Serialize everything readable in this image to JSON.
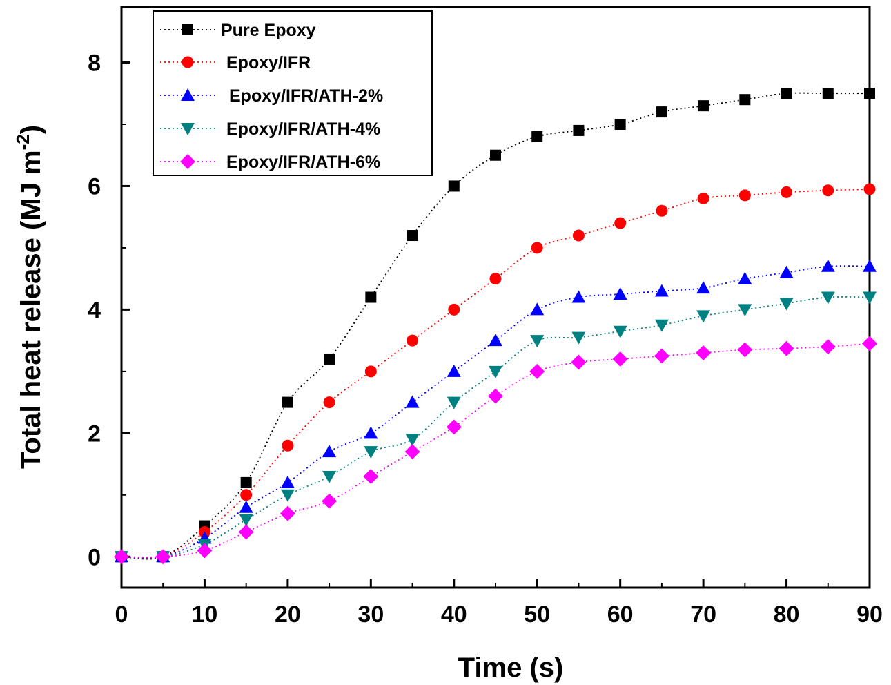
{
  "chart_data": {
    "type": "line",
    "xlabel": "Time (s)",
    "ylabel_main": "Total heat release (MJ m",
    "ylabel_sup": "-2",
    "ylabel_close": ")",
    "xlim": [
      0,
      90
    ],
    "ylim": [
      -0.5,
      8.9
    ],
    "xticks": [
      "0",
      "10",
      "20",
      "30",
      "40",
      "50",
      "60",
      "70",
      "80",
      "90"
    ],
    "yticks": [
      "0",
      "2",
      "4",
      "6",
      "8"
    ],
    "grid": false,
    "legend_position": "top-left",
    "x": [
      0,
      5,
      10,
      15,
      20,
      25,
      30,
      35,
      40,
      45,
      50,
      55,
      60,
      65,
      70,
      75,
      80,
      85,
      90
    ],
    "series": [
      {
        "name": "Pure Epoxy",
        "color": "#000000",
        "marker": "square",
        "values": [
          0,
          0,
          0.5,
          1.2,
          2.5,
          3.2,
          4.2,
          5.2,
          6.0,
          6.5,
          6.8,
          6.9,
          7.0,
          7.2,
          7.3,
          7.4,
          7.5,
          7.5,
          7.5
        ]
      },
      {
        "name": "Epoxy/IFR",
        "color": "#ff0000",
        "marker": "circle",
        "values": [
          0,
          0,
          0.4,
          1.0,
          1.8,
          2.5,
          3.0,
          3.5,
          4.0,
          4.5,
          5.0,
          5.2,
          5.4,
          5.6,
          5.8,
          5.85,
          5.9,
          5.93,
          5.95
        ]
      },
      {
        "name": " Epoxy/IFR/ATH-2%",
        "color": "#0000ff",
        "marker": "triangle-up",
        "values": [
          0,
          0,
          0.3,
          0.8,
          1.2,
          1.7,
          2.0,
          2.5,
          3.0,
          3.5,
          4.0,
          4.2,
          4.25,
          4.3,
          4.35,
          4.5,
          4.6,
          4.7,
          4.7
        ]
      },
      {
        "name": "Epoxy/IFR/ATH-4%",
        "color": "#008080",
        "marker": "triangle-down",
        "values": [
          0,
          0,
          0.2,
          0.6,
          1.0,
          1.3,
          1.7,
          1.9,
          2.5,
          3.0,
          3.5,
          3.55,
          3.65,
          3.75,
          3.9,
          4.0,
          4.1,
          4.2,
          4.2
        ]
      },
      {
        "name": "Epoxy/IFR/ATH-6%",
        "color": "#ff00ff",
        "marker": "diamond",
        "values": [
          0,
          0,
          0.1,
          0.4,
          0.7,
          0.9,
          1.3,
          1.7,
          2.1,
          2.6,
          3.0,
          3.15,
          3.2,
          3.25,
          3.3,
          3.35,
          3.37,
          3.4,
          3.45
        ]
      }
    ]
  }
}
